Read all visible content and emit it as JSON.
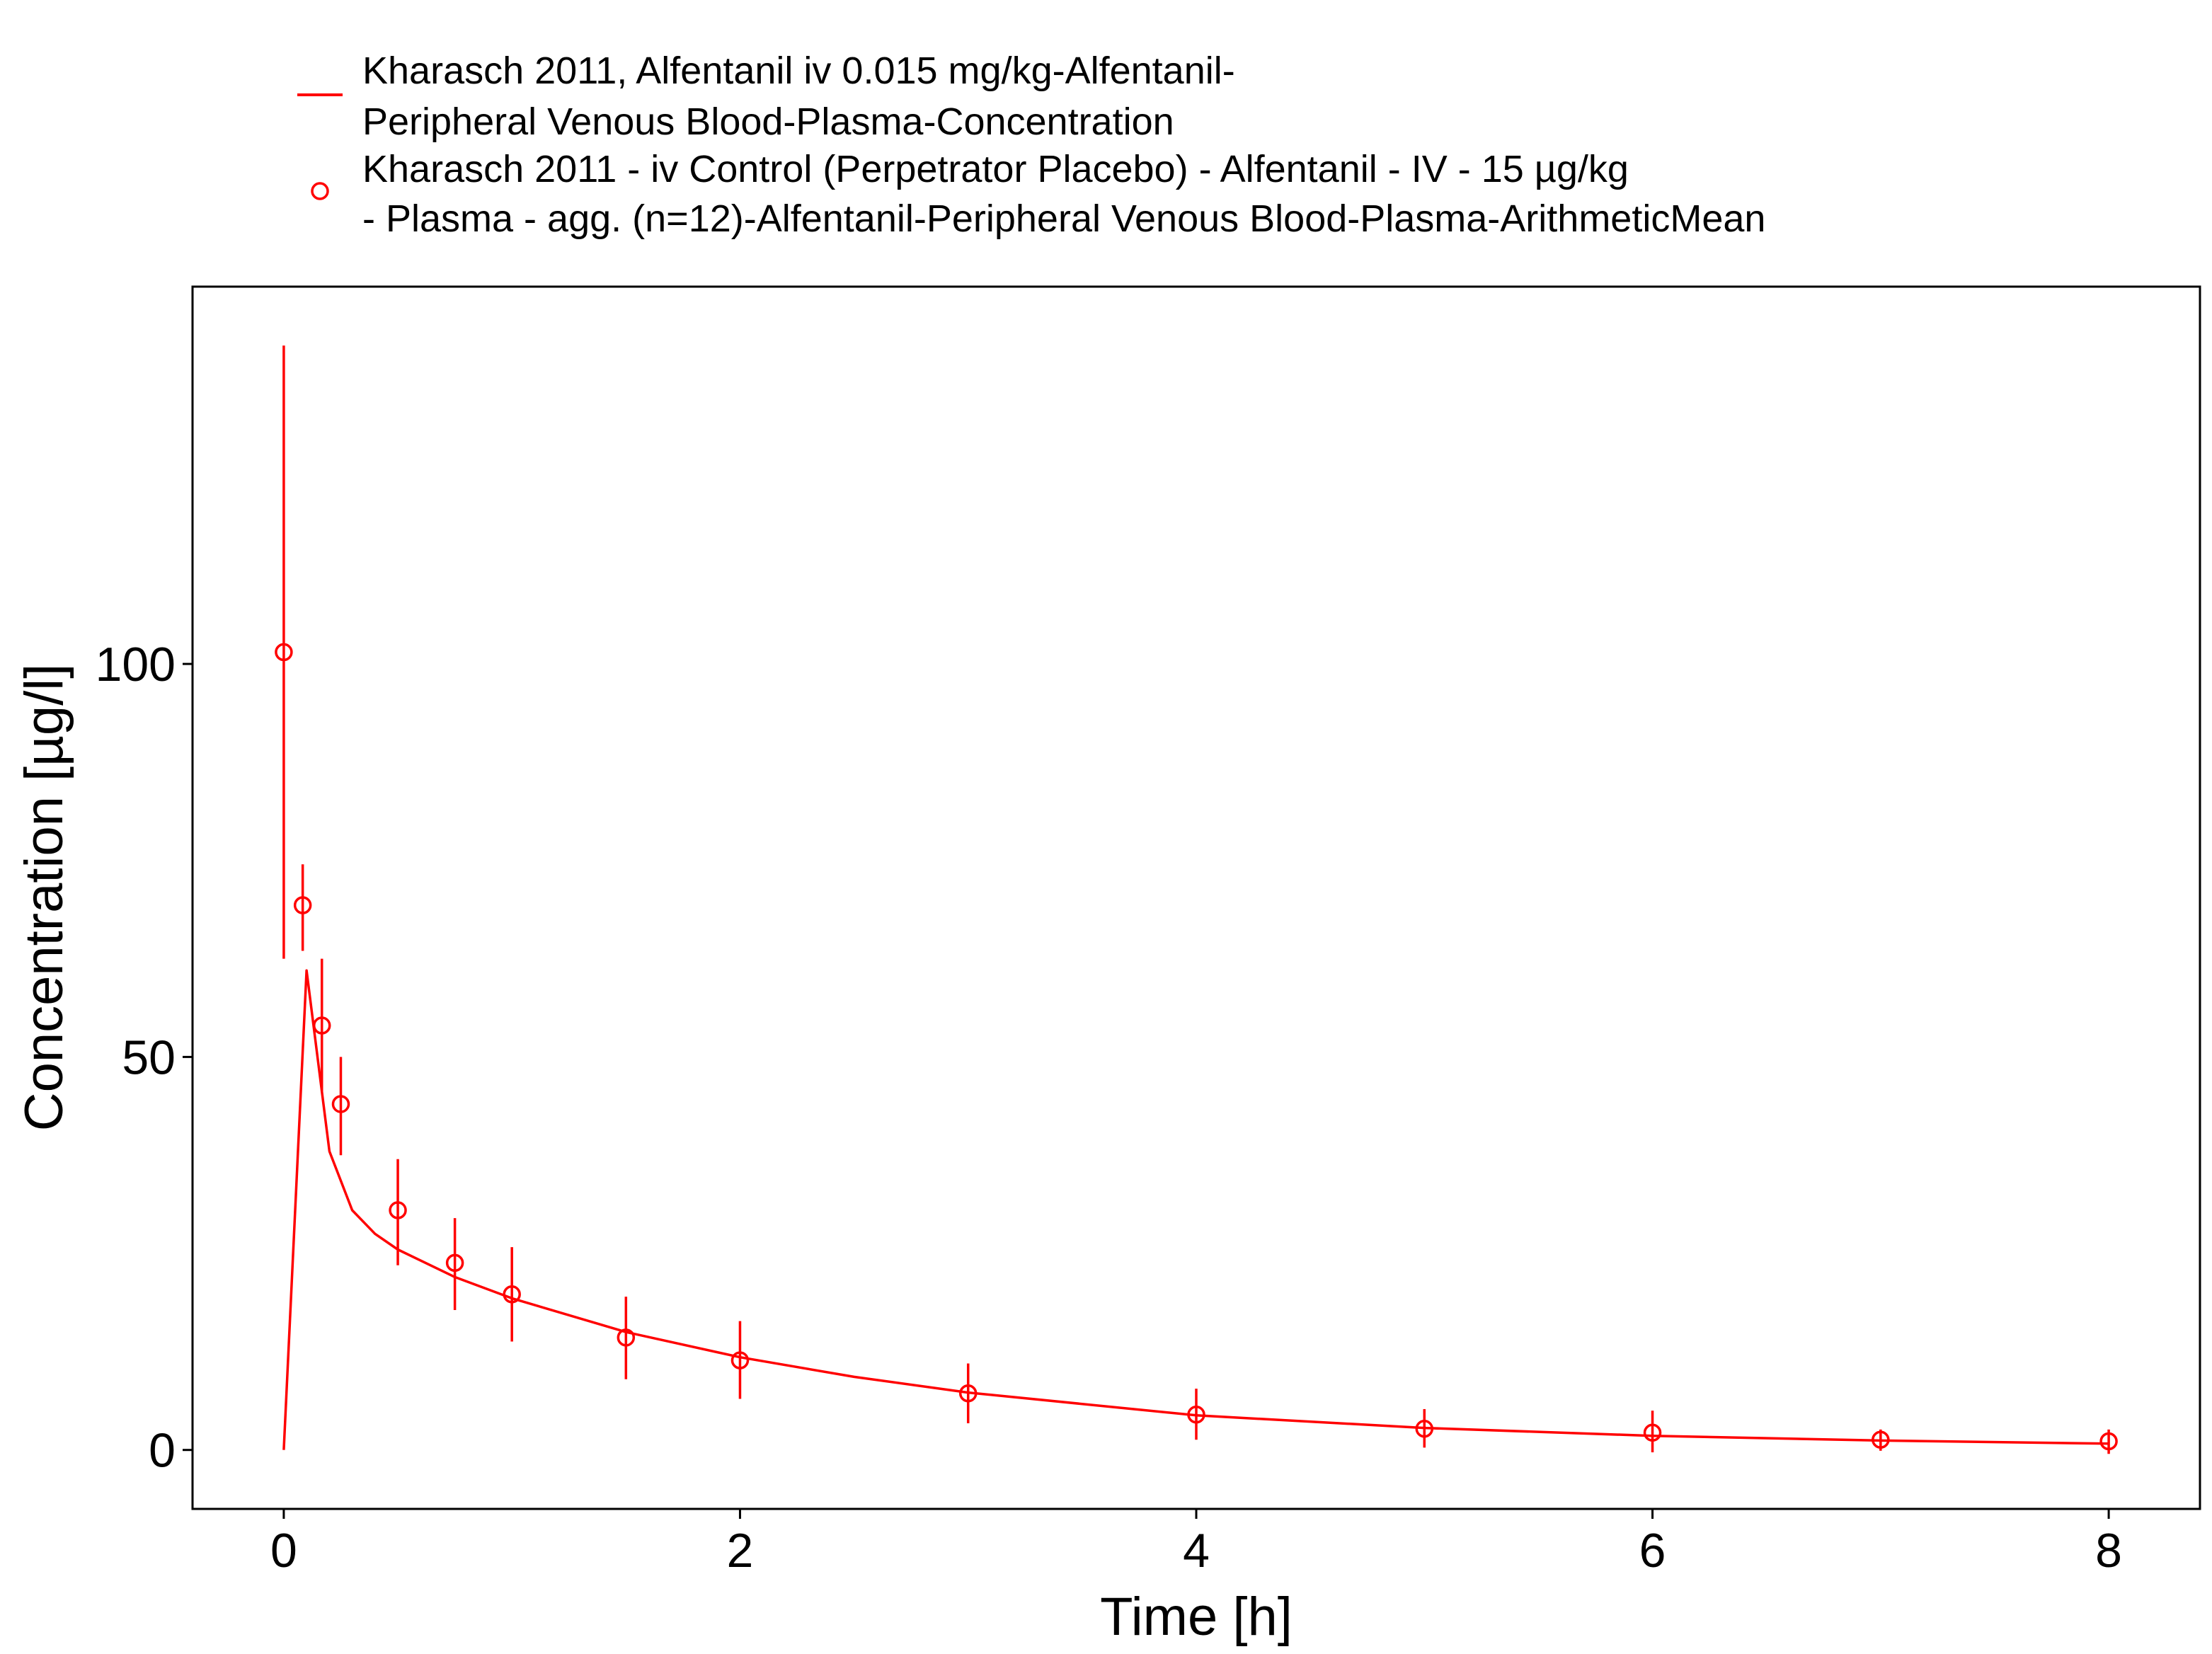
{
  "chart_data": {
    "type": "line",
    "title": "",
    "xlabel": "Time [h]",
    "ylabel": "Concentration [µg/l]",
    "xlim": [
      -0.4,
      8.4
    ],
    "ylim": [
      -7.5,
      148
    ],
    "xticks": [
      0,
      2,
      4,
      6,
      8
    ],
    "yticks": [
      0,
      50,
      100
    ],
    "grid": false,
    "legend_position": "top",
    "color": "#ff0000",
    "series": [
      {
        "name_lines": [
          "Kharasch 2011, Alfentanil iv 0.015 mg/kg-Alfentanil-",
          "Peripheral Venous Blood-Plasma-Concentration"
        ],
        "kind": "line",
        "x": [
          0,
          0.1,
          0.2,
          0.3,
          0.4,
          0.5,
          0.75,
          1,
          1.5,
          2,
          2.5,
          3,
          4,
          5,
          6,
          7,
          8
        ],
        "values": [
          0,
          61,
          38,
          30.5,
          27.5,
          25.5,
          22,
          19.3,
          15,
          11.8,
          9.3,
          7.3,
          4.4,
          2.8,
          1.8,
          1.2,
          0.8
        ]
      },
      {
        "name_lines": [
          "Kharasch 2011 - iv Control (Perpetrator Placebo) - Alfentanil - IV - 15 µg/kg",
          "- Plasma - agg. (n=12)-Alfentanil-Peripheral Venous Blood-Plasma-ArithmeticMean"
        ],
        "kind": "points_errorbars",
        "x": [
          0,
          0.083,
          0.167,
          0.25,
          0.5,
          0.75,
          1,
          1.5,
          2,
          3,
          4,
          5,
          6,
          7,
          8
        ],
        "values": [
          101.5,
          69.3,
          54,
          44,
          30.5,
          23.8,
          19.8,
          14.3,
          11.4,
          7.2,
          4.5,
          2.7,
          2.2,
          1.3,
          1.1
        ],
        "err_low": [
          62.5,
          63.5,
          45.5,
          37.5,
          23.5,
          17.8,
          13.8,
          9,
          6.5,
          3.4,
          1.3,
          0.3,
          -0.3,
          -0.1,
          -0.5
        ],
        "err_high": [
          140.5,
          74.5,
          62.5,
          50,
          37,
          29.5,
          25.8,
          19.5,
          16.4,
          11,
          7.8,
          5.2,
          5,
          2.6,
          2.6
        ]
      }
    ]
  }
}
